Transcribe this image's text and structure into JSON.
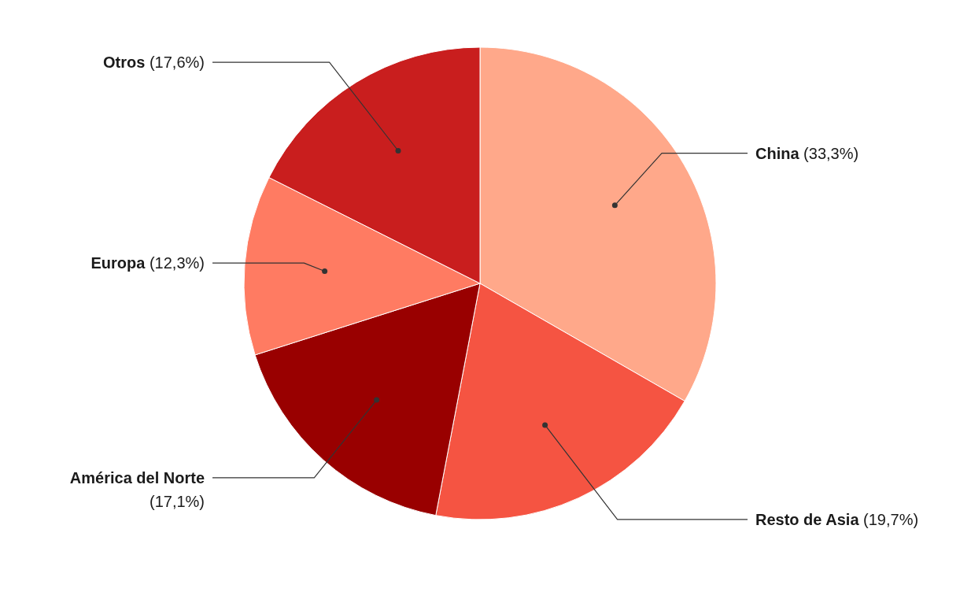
{
  "chart_data": {
    "type": "pie",
    "categories": [
      "China",
      "Resto de Asia",
      "América del Norte",
      "Europa",
      "Otros"
    ],
    "values": [
      33.3,
      19.7,
      17.1,
      12.3,
      17.6
    ],
    "value_labels": [
      "(33,3%)",
      "(19,7%)",
      "(17,1%)",
      "(12,3%)",
      "(17,6%)"
    ],
    "colors": [
      "#ffa88a",
      "#f55442",
      "#990000",
      "#ff7b62",
      "#c91e1e"
    ]
  }
}
